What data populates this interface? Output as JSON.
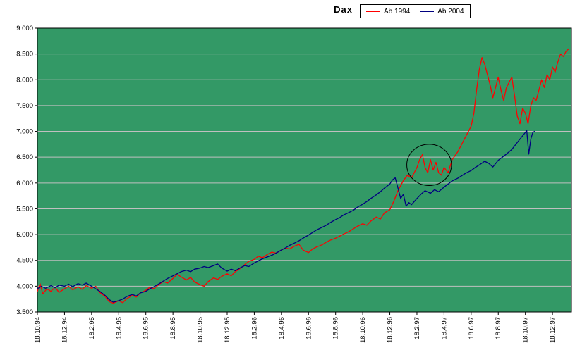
{
  "chart_data": {
    "type": "line",
    "title": "Dax",
    "xlabel": "",
    "ylabel": "",
    "grid": "horizontal",
    "legend_position": "top-center",
    "plot_bg_color": "#339966",
    "gridline_color": "#c0c0c0",
    "axis_text_color": "#000000",
    "y_axis": {
      "min": 3500,
      "max": 9000,
      "step": 500,
      "tick_labels": [
        "3.500",
        "4.000",
        "4.500",
        "5.000",
        "5.500",
        "6.000",
        "6.500",
        "7.000",
        "7.500",
        "8.000",
        "8.500",
        "9.000"
      ]
    },
    "x_axis": {
      "unit": "months since first tick",
      "months_per_tick": 2,
      "max_months": 39.4,
      "tick_labels": [
        "18.10.94",
        "18.12.94",
        "18.2.95",
        "18.4.95",
        "18.6.95",
        "18.8.95",
        "18.10.95",
        "18.12.95",
        "18.2.96",
        "18.4.96",
        "18.6.96",
        "18.8.96",
        "18.10.96",
        "18.12.96",
        "18.2.97",
        "18.4.97",
        "18.6.97",
        "18.8.97",
        "18.10.97",
        "18.12.97"
      ]
    },
    "series": [
      {
        "name": "Ab 1994",
        "color": "#ff0000",
        "points": [
          [
            0,
            3900
          ],
          [
            0.2,
            4050
          ],
          [
            0.4,
            3850
          ],
          [
            0.7,
            3950
          ],
          [
            1,
            3900
          ],
          [
            1.3,
            3980
          ],
          [
            1.6,
            3880
          ],
          [
            2,
            3950
          ],
          [
            2.3,
            4000
          ],
          [
            2.6,
            3930
          ],
          [
            3,
            3990
          ],
          [
            3.3,
            3940
          ],
          [
            3.6,
            4010
          ],
          [
            4,
            3960
          ],
          [
            4.3,
            4000
          ],
          [
            4.6,
            3880
          ],
          [
            5,
            3800
          ],
          [
            5.3,
            3700
          ],
          [
            5.6,
            3670
          ],
          [
            6,
            3720
          ],
          [
            6.3,
            3680
          ],
          [
            6.6,
            3760
          ],
          [
            7,
            3820
          ],
          [
            7.3,
            3790
          ],
          [
            7.6,
            3870
          ],
          [
            8,
            3920
          ],
          [
            8.3,
            3980
          ],
          [
            8.6,
            3950
          ],
          [
            9,
            4040
          ],
          [
            9.3,
            4090
          ],
          [
            9.6,
            4060
          ],
          [
            10,
            4150
          ],
          [
            10.3,
            4230
          ],
          [
            10.6,
            4180
          ],
          [
            11,
            4120
          ],
          [
            11.3,
            4170
          ],
          [
            11.6,
            4080
          ],
          [
            12,
            4030
          ],
          [
            12.3,
            4000
          ],
          [
            12.6,
            4090
          ],
          [
            13,
            4160
          ],
          [
            13.3,
            4130
          ],
          [
            13.6,
            4190
          ],
          [
            14,
            4240
          ],
          [
            14.3,
            4200
          ],
          [
            14.6,
            4280
          ],
          [
            15,
            4350
          ],
          [
            15.3,
            4420
          ],
          [
            15.6,
            4480
          ],
          [
            16,
            4520
          ],
          [
            16.3,
            4580
          ],
          [
            16.6,
            4550
          ],
          [
            17,
            4620
          ],
          [
            17.3,
            4660
          ],
          [
            17.6,
            4640
          ],
          [
            18,
            4700
          ],
          [
            18.3,
            4740
          ],
          [
            18.6,
            4720
          ],
          [
            19,
            4780
          ],
          [
            19.3,
            4810
          ],
          [
            19.6,
            4700
          ],
          [
            20,
            4650
          ],
          [
            20.3,
            4720
          ],
          [
            20.6,
            4760
          ],
          [
            21,
            4800
          ],
          [
            21.3,
            4850
          ],
          [
            21.6,
            4890
          ],
          [
            22,
            4930
          ],
          [
            22.3,
            4970
          ],
          [
            22.6,
            5010
          ],
          [
            23,
            5060
          ],
          [
            23.3,
            5110
          ],
          [
            23.6,
            5160
          ],
          [
            24,
            5210
          ],
          [
            24.3,
            5180
          ],
          [
            24.6,
            5260
          ],
          [
            25,
            5340
          ],
          [
            25.3,
            5300
          ],
          [
            25.6,
            5420
          ],
          [
            26,
            5480
          ],
          [
            26.3,
            5650
          ],
          [
            26.6,
            5850
          ],
          [
            27,
            6050
          ],
          [
            27.3,
            6150
          ],
          [
            27.6,
            6100
          ],
          [
            28,
            6300
          ],
          [
            28.2,
            6450
          ],
          [
            28.4,
            6550
          ],
          [
            28.6,
            6300
          ],
          [
            28.8,
            6200
          ],
          [
            29,
            6450
          ],
          [
            29.2,
            6250
          ],
          [
            29.4,
            6400
          ],
          [
            29.6,
            6200
          ],
          [
            29.8,
            6150
          ],
          [
            30,
            6300
          ],
          [
            30.3,
            6200
          ],
          [
            30.6,
            6450
          ],
          [
            31,
            6600
          ],
          [
            31.3,
            6750
          ],
          [
            31.6,
            6900
          ],
          [
            32,
            7100
          ],
          [
            32.2,
            7350
          ],
          [
            32.4,
            7800
          ],
          [
            32.6,
            8200
          ],
          [
            32.8,
            8430
          ],
          [
            33,
            8300
          ],
          [
            33.2,
            8100
          ],
          [
            33.4,
            7900
          ],
          [
            33.6,
            7650
          ],
          [
            33.8,
            7850
          ],
          [
            34,
            8050
          ],
          [
            34.2,
            7800
          ],
          [
            34.4,
            7600
          ],
          [
            34.6,
            7850
          ],
          [
            34.8,
            7950
          ],
          [
            35,
            8050
          ],
          [
            35.2,
            7700
          ],
          [
            35.4,
            7300
          ],
          [
            35.6,
            7150
          ],
          [
            35.8,
            7450
          ],
          [
            36,
            7350
          ],
          [
            36.2,
            7150
          ],
          [
            36.4,
            7500
          ],
          [
            36.6,
            7650
          ],
          [
            36.8,
            7600
          ],
          [
            37,
            7800
          ],
          [
            37.2,
            8000
          ],
          [
            37.4,
            7850
          ],
          [
            37.6,
            8100
          ],
          [
            37.8,
            8000
          ],
          [
            38,
            8250
          ],
          [
            38.2,
            8150
          ],
          [
            38.4,
            8350
          ],
          [
            38.6,
            8500
          ],
          [
            38.8,
            8450
          ],
          [
            39,
            8550
          ],
          [
            39.2,
            8600
          ]
        ]
      },
      {
        "name": "Ab 2004",
        "color": "#000080",
        "points": [
          [
            0,
            3950
          ],
          [
            0.3,
            4000
          ],
          [
            0.6,
            3960
          ],
          [
            1,
            4010
          ],
          [
            1.3,
            3970
          ],
          [
            1.6,
            4020
          ],
          [
            2,
            4000
          ],
          [
            2.3,
            4040
          ],
          [
            2.6,
            3990
          ],
          [
            3,
            4050
          ],
          [
            3.3,
            4020
          ],
          [
            3.6,
            4060
          ],
          [
            4,
            4000
          ],
          [
            4.3,
            3950
          ],
          [
            4.6,
            3900
          ],
          [
            5,
            3820
          ],
          [
            5.3,
            3740
          ],
          [
            5.6,
            3690
          ],
          [
            6,
            3720
          ],
          [
            6.3,
            3750
          ],
          [
            6.6,
            3800
          ],
          [
            7,
            3840
          ],
          [
            7.3,
            3810
          ],
          [
            7.6,
            3870
          ],
          [
            8,
            3900
          ],
          [
            8.3,
            3950
          ],
          [
            8.6,
            3990
          ],
          [
            9,
            4050
          ],
          [
            9.3,
            4100
          ],
          [
            9.6,
            4150
          ],
          [
            10,
            4200
          ],
          [
            10.3,
            4240
          ],
          [
            10.6,
            4280
          ],
          [
            11,
            4310
          ],
          [
            11.3,
            4280
          ],
          [
            11.6,
            4330
          ],
          [
            12,
            4350
          ],
          [
            12.3,
            4380
          ],
          [
            12.6,
            4360
          ],
          [
            13,
            4400
          ],
          [
            13.3,
            4430
          ],
          [
            13.6,
            4350
          ],
          [
            14,
            4290
          ],
          [
            14.3,
            4330
          ],
          [
            14.6,
            4300
          ],
          [
            15,
            4360
          ],
          [
            15.3,
            4400
          ],
          [
            15.6,
            4380
          ],
          [
            16,
            4450
          ],
          [
            16.3,
            4490
          ],
          [
            16.6,
            4530
          ],
          [
            17,
            4570
          ],
          [
            17.3,
            4600
          ],
          [
            17.6,
            4640
          ],
          [
            18,
            4700
          ],
          [
            18.3,
            4740
          ],
          [
            18.6,
            4790
          ],
          [
            19,
            4840
          ],
          [
            19.3,
            4880
          ],
          [
            19.6,
            4930
          ],
          [
            20,
            4990
          ],
          [
            20.3,
            5040
          ],
          [
            20.6,
            5090
          ],
          [
            21,
            5140
          ],
          [
            21.3,
            5180
          ],
          [
            21.6,
            5230
          ],
          [
            22,
            5290
          ],
          [
            22.3,
            5330
          ],
          [
            22.6,
            5380
          ],
          [
            23,
            5430
          ],
          [
            23.3,
            5470
          ],
          [
            23.6,
            5530
          ],
          [
            24,
            5590
          ],
          [
            24.3,
            5640
          ],
          [
            24.6,
            5700
          ],
          [
            25,
            5770
          ],
          [
            25.3,
            5830
          ],
          [
            25.6,
            5900
          ],
          [
            26,
            5980
          ],
          [
            26.2,
            6060
          ],
          [
            26.4,
            6100
          ],
          [
            26.6,
            5900
          ],
          [
            26.8,
            5700
          ],
          [
            27,
            5780
          ],
          [
            27.2,
            5550
          ],
          [
            27.4,
            5620
          ],
          [
            27.6,
            5580
          ],
          [
            28,
            5700
          ],
          [
            28.3,
            5780
          ],
          [
            28.6,
            5850
          ],
          [
            29,
            5800
          ],
          [
            29.3,
            5870
          ],
          [
            29.6,
            5830
          ],
          [
            30,
            5920
          ],
          [
            30.3,
            5980
          ],
          [
            30.6,
            6040
          ],
          [
            31,
            6090
          ],
          [
            31.3,
            6140
          ],
          [
            31.6,
            6190
          ],
          [
            32,
            6240
          ],
          [
            32.3,
            6300
          ],
          [
            32.6,
            6350
          ],
          [
            33,
            6420
          ],
          [
            33.3,
            6380
          ],
          [
            33.6,
            6310
          ],
          [
            34,
            6440
          ],
          [
            34.3,
            6500
          ],
          [
            34.6,
            6560
          ],
          [
            35,
            6650
          ],
          [
            35.3,
            6750
          ],
          [
            35.6,
            6850
          ],
          [
            36,
            6980
          ],
          [
            36.1,
            7020
          ],
          [
            36.25,
            6560
          ],
          [
            36.4,
            6850
          ],
          [
            36.55,
            6980
          ],
          [
            36.7,
            7000
          ]
        ]
      }
    ],
    "annotations": [
      {
        "type": "ellipse",
        "cx_month": 28.9,
        "cy_value": 6350,
        "rx_months": 1.65,
        "ry_value": 400,
        "color": "#000000"
      }
    ]
  }
}
